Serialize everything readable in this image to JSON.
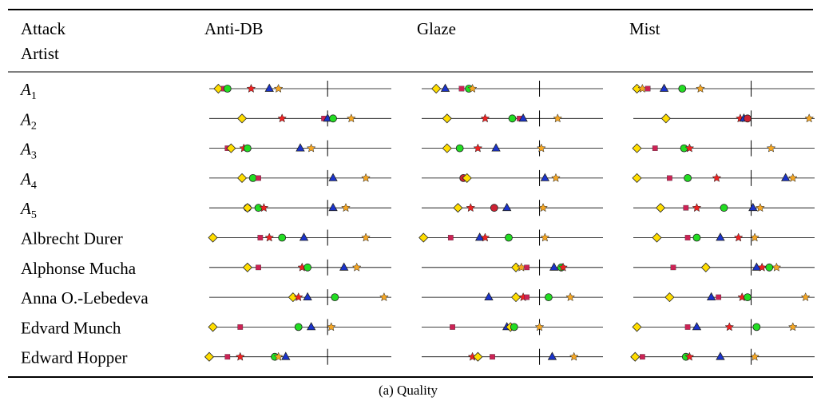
{
  "table": {
    "header_row1": [
      "Attack",
      "Anti-DB",
      "Glaze",
      "Mist"
    ],
    "header_row2": "Artist",
    "caption": "(a) Quality"
  },
  "chart_data": {
    "type": "scatter",
    "title": "",
    "columns": [
      "Anti-DB",
      "Glaze",
      "Mist"
    ],
    "rows": [
      {
        "label": "A",
        "sub": "1"
      },
      {
        "label": "A",
        "sub": "2"
      },
      {
        "label": "A",
        "sub": "3"
      },
      {
        "label": "A",
        "sub": "4"
      },
      {
        "label": "A",
        "sub": "5"
      },
      {
        "label": "Albrecht Durer"
      },
      {
        "label": "Alphonse Mucha"
      },
      {
        "label": "Anna O.-Lebedeva"
      },
      {
        "label": "Edvard Munch"
      },
      {
        "label": "Edward Hopper"
      }
    ],
    "x_range": [
      0,
      1
    ],
    "threshold": {
      "Anti-DB": 0.65,
      "Glaze": 0.65,
      "Mist": 0.65
    },
    "marker_styles": {
      "diamond": {
        "shape": "diamond",
        "color": "#ffdd00"
      },
      "square": {
        "shape": "square",
        "color": "#cc2255"
      },
      "star_red": {
        "shape": "star",
        "color": "#ee2222"
      },
      "triangle": {
        "shape": "triangle",
        "color": "#1a33cc"
      },
      "circle": {
        "shape": "circle",
        "color": "#22dd22"
      },
      "star_orange": {
        "shape": "star",
        "color": "#f5a623"
      },
      "circle_red": {
        "shape": "circle",
        "color": "#cc2233"
      }
    },
    "points": {
      "Anti-DB": [
        {
          "diamond": 0.05,
          "square": 0.08,
          "circle": 0.1,
          "star_red": 0.23,
          "triangle": 0.33,
          "star_orange": 0.38
        },
        {
          "diamond": 0.18,
          "star_red": 0.4,
          "square": 0.63,
          "triangle": 0.65,
          "circle": 0.68,
          "star_orange": 0.78
        },
        {
          "square": 0.1,
          "diamond": 0.12,
          "star_red": 0.19,
          "circle": 0.21,
          "triangle": 0.5,
          "star_orange": 0.56
        },
        {
          "diamond": 0.18,
          "circle": 0.24,
          "square": 0.27,
          "triangle": 0.68,
          "star_orange": 0.86
        },
        {
          "circle_red": 0.21,
          "diamond": 0.21,
          "circle": 0.27,
          "star_red": 0.3,
          "triangle": 0.68,
          "star_orange": 0.75
        },
        {
          "diamond": 0.02,
          "square": 0.28,
          "star_red": 0.33,
          "circle": 0.4,
          "triangle": 0.52,
          "star_orange": 0.86
        },
        {
          "diamond": 0.21,
          "square": 0.27,
          "star_red": 0.51,
          "circle": 0.54,
          "triangle": 0.74,
          "star_orange": 0.81
        },
        {
          "diamond": 0.46,
          "star_red": 0.49,
          "triangle": 0.54,
          "circle": 0.69,
          "star_orange": 0.96
        },
        {
          "diamond": 0.02,
          "square": 0.17,
          "circle": 0.49,
          "triangle": 0.56,
          "star_orange": 0.67
        },
        {
          "diamond": 0.0,
          "square": 0.1,
          "star_red": 0.17,
          "circle": 0.36,
          "star_orange": 0.38,
          "triangle": 0.42
        }
      ],
      "Glaze": [
        {
          "diamond": 0.08,
          "triangle": 0.13,
          "square": 0.22,
          "circle": 0.26,
          "star_orange": 0.28
        },
        {
          "diamond": 0.14,
          "star_red": 0.35,
          "circle": 0.5,
          "square": 0.54,
          "triangle": 0.56,
          "star_orange": 0.75
        },
        {
          "diamond": 0.14,
          "circle": 0.21,
          "star_red": 0.31,
          "triangle": 0.41,
          "star_orange": 0.66
        },
        {
          "circle_red": 0.23,
          "diamond": 0.25,
          "triangle": 0.68,
          "star_orange": 0.74
        },
        {
          "diamond": 0.2,
          "star_red": 0.27,
          "circle_red": 0.4,
          "triangle": 0.47,
          "star_orange": 0.67
        },
        {
          "diamond": 0.01,
          "square": 0.16,
          "triangle": 0.32,
          "star_red": 0.35,
          "circle": 0.48,
          "star_orange": 0.68
        },
        {
          "diamond": 0.52,
          "star_orange": 0.55,
          "square": 0.58,
          "triangle": 0.73,
          "circle": 0.77,
          "star_red": 0.78
        },
        {
          "triangle": 0.37,
          "diamond": 0.52,
          "star_red": 0.56,
          "square": 0.58,
          "circle": 0.7,
          "star_orange": 0.82
        },
        {
          "square": 0.17,
          "triangle": 0.47,
          "diamond": 0.49,
          "circle": 0.51,
          "star_orange": 0.65
        },
        {
          "star_red": 0.28,
          "diamond": 0.31,
          "square": 0.39,
          "triangle": 0.72,
          "star_orange": 0.84
        }
      ],
      "Mist": [
        {
          "diamond": 0.02,
          "star_orange": 0.05,
          "square": 0.08,
          "triangle": 0.17,
          "circle": 0.27,
          "star_orange2": 0.37
        },
        {
          "diamond": 0.18,
          "star_red": 0.59,
          "triangle": 0.61,
          "circle_red": 0.63,
          "star_orange": 0.97
        },
        {
          "diamond": 0.02,
          "square": 0.12,
          "circle": 0.28,
          "star_red": 0.31,
          "star_orange": 0.76
        },
        {
          "diamond": 0.02,
          "square": 0.2,
          "circle": 0.3,
          "star_red": 0.46,
          "triangle": 0.84,
          "star_orange": 0.88
        },
        {
          "diamond": 0.15,
          "square": 0.29,
          "star_red": 0.35,
          "circle": 0.5,
          "triangle": 0.66,
          "star_orange": 0.7
        },
        {
          "diamond": 0.13,
          "square": 0.3,
          "circle": 0.35,
          "triangle": 0.48,
          "star_red": 0.58,
          "star_orange": 0.67
        },
        {
          "square": 0.22,
          "diamond": 0.4,
          "triangle": 0.68,
          "star_red": 0.71,
          "circle": 0.75,
          "star_orange": 0.79
        },
        {
          "diamond": 0.2,
          "triangle": 0.43,
          "square": 0.47,
          "star_red": 0.6,
          "circle": 0.63,
          "star_orange": 0.95
        },
        {
          "diamond": 0.02,
          "square": 0.3,
          "triangle": 0.35,
          "star_red": 0.53,
          "circle": 0.68,
          "star_orange": 0.88
        },
        {
          "diamond": 0.01,
          "square": 0.05,
          "circle": 0.29,
          "star_red": 0.31,
          "triangle": 0.48,
          "star_orange": 0.67
        }
      ]
    }
  }
}
